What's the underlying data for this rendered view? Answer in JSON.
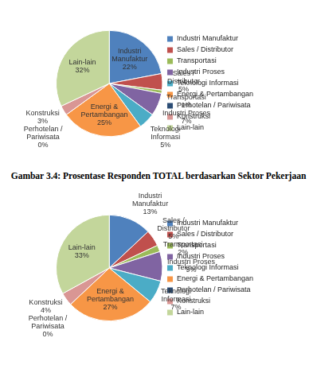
{
  "chart_data": [
    {
      "type": "pie",
      "caption": "Gambar 3.4: Prosentase Responden TOTAL berdasarkan Sektor Pekerjaan",
      "categories": [
        "Industri Manufaktur",
        "Sales / Distributor",
        "Transportasi",
        "Industri Proses",
        "Teknologi Informasi",
        "Energi & Pertambangan",
        "Perhotelan / Pariwisata",
        "Konstruksi",
        "Lain-lain"
      ],
      "values": [
        22,
        5,
        1,
        7,
        5,
        25,
        0,
        3,
        32
      ],
      "value_labels": [
        "22%",
        "5%",
        "1%",
        "7%",
        "5%",
        "25%",
        "0%",
        "3%",
        "32%"
      ],
      "colors": [
        "#4f81bd",
        "#c0504d",
        "#9bbb59",
        "#8064a2",
        "#4bacc6",
        "#f79646",
        "#2c4d75",
        "#d99694",
        "#c3d69b"
      ],
      "legend": "right",
      "data_labels": true
    },
    {
      "type": "pie",
      "categories": [
        "Industri Manufaktur",
        "Sales / Distributor",
        "Transportasi",
        "Industri Proses",
        "Teknologi Informasi",
        "Energi & Pertambangan",
        "Perhotelan / Pariwisata",
        "Konstruksi",
        "Lain-lain"
      ],
      "values": [
        13,
        5,
        2,
        9,
        7,
        27,
        0,
        4,
        33
      ],
      "value_labels": [
        "13%",
        "5%",
        "2%",
        "9%",
        "7%",
        "27%",
        "0%",
        "4%",
        "33%"
      ],
      "colors": [
        "#4f81bd",
        "#c0504d",
        "#9bbb59",
        "#8064a2",
        "#4bacc6",
        "#f79646",
        "#2c4d75",
        "#d99694",
        "#c3d69b"
      ],
      "legend": "right",
      "data_labels": true
    }
  ]
}
